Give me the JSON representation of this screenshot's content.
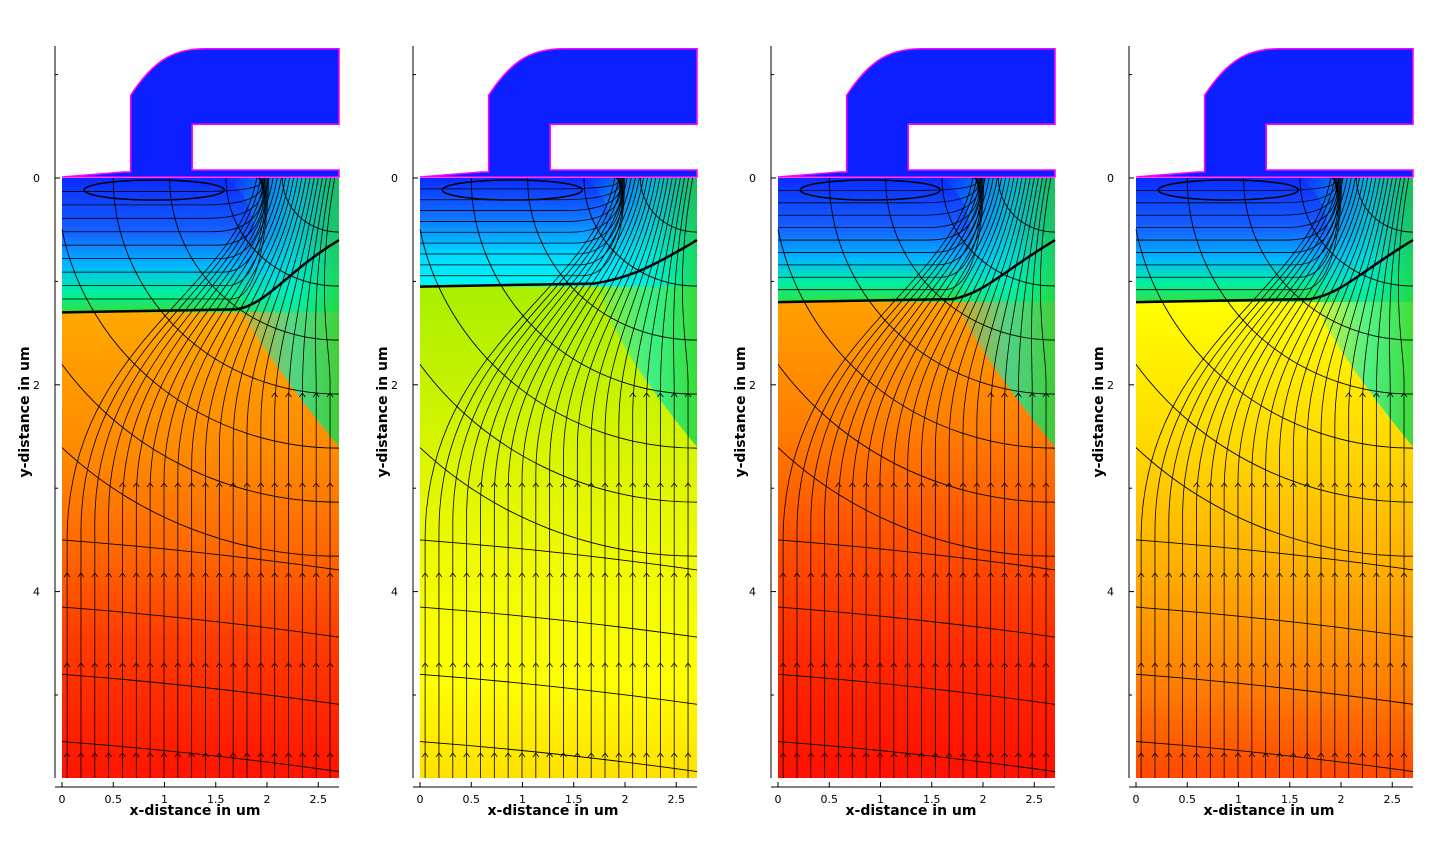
{
  "chart_data": [
    {
      "type": "contour",
      "xlabel": "x-distance in um",
      "ylabel": "y-distance in um",
      "xlim": [
        0,
        2.7
      ],
      "ylim": [
        -1.25,
        5.8
      ],
      "x_ticks": [
        "0",
        "0.5",
        "1",
        "1.5",
        "2",
        "2.5"
      ],
      "y_ticks": [
        "0",
        "2",
        "4"
      ],
      "junction_depth_um": 1.3,
      "bands": [
        "#0b2cff",
        "#1060ff",
        "#00c8ff",
        "#00f0a0",
        "#30e040",
        "#ffa800",
        "#ff8c00",
        "#ff7000",
        "#ff4a00",
        "#ff2a00",
        "#ff1400"
      ]
    },
    {
      "type": "contour",
      "xlabel": "x-distance in um",
      "ylabel": "y-distance in um",
      "xlim": [
        0,
        2.7
      ],
      "ylim": [
        -1.25,
        5.8
      ],
      "x_ticks": [
        "0",
        "0.5",
        "1",
        "1.5",
        "2",
        "2.5"
      ],
      "y_ticks": [
        "0",
        "2",
        "4"
      ],
      "junction_depth_um": 1.05,
      "bands": [
        "#0b2cff",
        "#1070ff",
        "#00d8ff",
        "#00ff90",
        "#60e000",
        "#a0f000",
        "#c8f000",
        "#e0f400",
        "#f4f800",
        "#ffff00",
        "#ffe000"
      ]
    },
    {
      "type": "contour",
      "xlabel": "x-distance in um",
      "ylabel": "y-distance in um",
      "xlim": [
        0,
        2.7
      ],
      "ylim": [
        -1.25,
        5.8
      ],
      "x_ticks": [
        "0",
        "0.5",
        "1",
        "1.5",
        "2",
        "2.5"
      ],
      "y_ticks": [
        "0",
        "2",
        "4"
      ],
      "junction_depth_um": 1.2,
      "bands": [
        "#0b2cff",
        "#1060ff",
        "#00c8ff",
        "#00ff80",
        "#30e020",
        "#ffa800",
        "#ff8000",
        "#ff6a00",
        "#ff4000",
        "#ff2800",
        "#ff1000"
      ]
    },
    {
      "type": "contour",
      "xlabel": "x-distance in um",
      "ylabel": "y-distance in um",
      "xlim": [
        0,
        2.7
      ],
      "ylim": [
        -1.25,
        5.8
      ],
      "x_ticks": [
        "0",
        "0.5",
        "1",
        "1.5",
        "2",
        "2.5"
      ],
      "y_ticks": [
        "0",
        "2",
        "4"
      ],
      "junction_depth_um": 1.2,
      "bands": [
        "#0b2cff",
        "#1060ff",
        "#00c8ff",
        "#00ff80",
        "#40e020",
        "#ffff00",
        "#ffd400",
        "#ffb000",
        "#ff8c00",
        "#ff6400",
        "#ff4000"
      ]
    }
  ]
}
